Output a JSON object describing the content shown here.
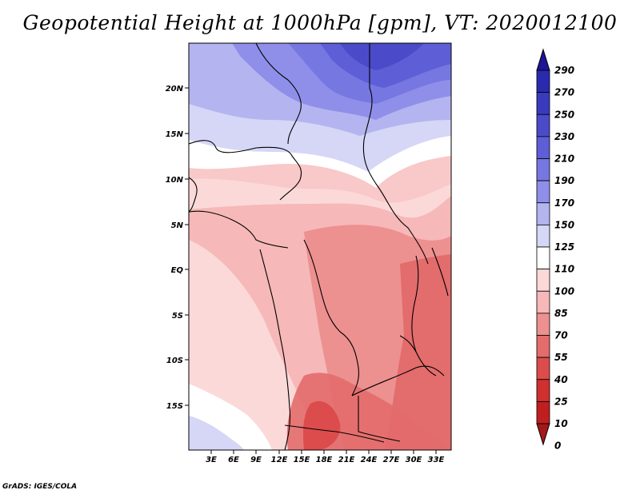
{
  "title": "Geopotential Height at 1000hPa [gpm], VT: 2020012100",
  "credit": "GrADS: IGES/COLA",
  "map": {
    "field": "Geopotential Height at 1000hPa",
    "units": "gpm",
    "valid_time": "2020012100",
    "lon_range": [
      0,
      35
    ],
    "lat_range": [
      -20,
      24.5
    ],
    "lat_ticks": [
      {
        "value": 20,
        "label": "20N"
      },
      {
        "value": 15,
        "label": "15N"
      },
      {
        "value": 10,
        "label": "10N"
      },
      {
        "value": 5,
        "label": "5N"
      },
      {
        "value": 0,
        "label": "EQ"
      },
      {
        "value": -5,
        "label": "5S"
      },
      {
        "value": -10,
        "label": "10S"
      },
      {
        "value": -15,
        "label": "15S"
      }
    ],
    "lon_ticks": [
      {
        "value": 3,
        "label": "3E"
      },
      {
        "value": 6,
        "label": "6E"
      },
      {
        "value": 9,
        "label": "9E"
      },
      {
        "value": 12,
        "label": "12E"
      },
      {
        "value": 15,
        "label": "15E"
      },
      {
        "value": 18,
        "label": "18E"
      },
      {
        "value": 21,
        "label": "21E"
      },
      {
        "value": 24,
        "label": "24E"
      },
      {
        "value": 27,
        "label": "27E"
      },
      {
        "value": 30,
        "label": "30E"
      },
      {
        "value": 33,
        "label": "33E"
      }
    ]
  },
  "colorbar": {
    "labels": [
      "290",
      "270",
      "250",
      "230",
      "210",
      "190",
      "170",
      "150",
      "125",
      "110",
      "100",
      "85",
      "70",
      "55",
      "40",
      "25",
      "10",
      "0"
    ],
    "colors": [
      "#1e1496",
      "#2a2aae",
      "#3a3abf",
      "#4b4bca",
      "#5e5ed6",
      "#7777e2",
      "#8f8fea",
      "#b4b4f0",
      "#d6d6f7",
      "#ffffff",
      "#fcd9d9",
      "#f6b8b8",
      "#ed9090",
      "#e36c6c",
      "#dc4c4c",
      "#d03030",
      "#c01f1f",
      "#a51818"
    ]
  }
}
